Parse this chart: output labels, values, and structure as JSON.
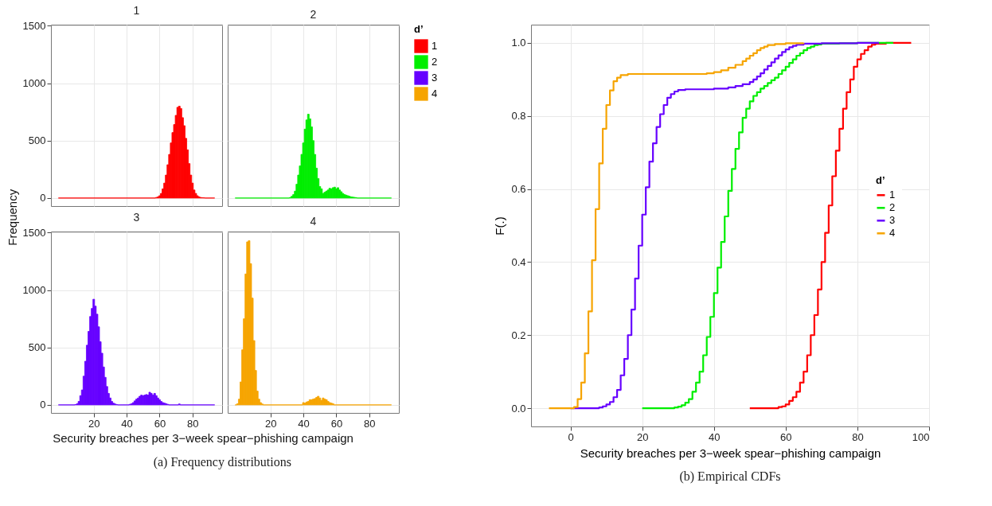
{
  "chart_data": [
    {
      "type": "histogram",
      "title": "1",
      "ylabel": "Frequency",
      "xlim": [
        -6,
        98
      ],
      "ylim": [
        -70,
        1510
      ],
      "xticks": [
        20,
        40,
        60,
        80
      ],
      "yticks": [
        0,
        500,
        1000,
        1500
      ],
      "grid": true,
      "tick_labels": "y",
      "legend": "right",
      "legend_title": "d’",
      "bins": [
        -1.5,
        57.5,
        58.5,
        59.5,
        60.5,
        61.5,
        62.5,
        63.5,
        64.5,
        65.5,
        66.5,
        67.5,
        68.5,
        69.5,
        70.5,
        71.5,
        72.5,
        73.5,
        74.5,
        75.5,
        76.5,
        77.5,
        78.5,
        79.5,
        80.5,
        81.5,
        82.5,
        83.5,
        84.5,
        85.5,
        86.5,
        87.5,
        93.5
      ],
      "series": [
        {
          "name": "1",
          "color": "#ff0000",
          "values": [
            0,
            5,
            10,
            20,
            40,
            80,
            130,
            200,
            290,
            380,
            480,
            570,
            640,
            720,
            790,
            800,
            780,
            700,
            630,
            520,
            420,
            300,
            200,
            130,
            70,
            40,
            20,
            10,
            5,
            3,
            2,
            0
          ]
        }
      ]
    },
    {
      "type": "histogram",
      "title": "2",
      "xlim": [
        -6,
        98
      ],
      "ylim": [
        -70,
        1510
      ],
      "xticks": [
        20,
        40,
        60,
        80
      ],
      "yticks": [
        0,
        500,
        1000,
        1500
      ],
      "grid": true,
      "tick_labels": false,
      "legend": "right",
      "bins": [
        -1.5,
        31.5,
        32.5,
        33.5,
        34.5,
        35.5,
        36.5,
        37.5,
        38.5,
        39.5,
        40.5,
        41.5,
        42.5,
        43.5,
        44.5,
        45.5,
        46.5,
        47.5,
        48.5,
        49.5,
        50.5,
        51.5,
        52.5,
        53.5,
        54.5,
        55.5,
        56.5,
        57.5,
        58.5,
        59.5,
        60.5,
        61.5,
        62.5,
        63.5,
        64.5,
        65.5,
        66.5,
        67.5,
        68.5,
        69.5,
        70.5,
        71.5,
        72.5,
        93.5
      ],
      "series": [
        {
          "name": "2",
          "color": "#00ee00",
          "values": [
            0,
            5,
            15,
            30,
            60,
            120,
            200,
            280,
            380,
            480,
            600,
            680,
            730,
            690,
            620,
            500,
            380,
            260,
            170,
            100,
            80,
            40,
            50,
            60,
            70,
            85,
            80,
            90,
            95,
            80,
            90,
            70,
            55,
            40,
            30,
            25,
            20,
            15,
            10,
            8,
            6,
            4,
            0
          ]
        }
      ]
    },
    {
      "type": "histogram",
      "title": "3",
      "xlabel": "Security breaches per 3−week spear−phishing campaign",
      "xlim": [
        -6,
        98
      ],
      "ylim": [
        -70,
        1510
      ],
      "xticks": [
        20,
        40,
        60,
        80
      ],
      "yticks": [
        0,
        500,
        1000,
        1500
      ],
      "grid": true,
      "legend": "right",
      "annotations": [
        "(a) Frequency distributions"
      ],
      "bins": [
        -1.5,
        8.5,
        9.5,
        10.5,
        11.5,
        12.5,
        13.5,
        14.5,
        15.5,
        16.5,
        17.5,
        18.5,
        19.5,
        20.5,
        21.5,
        22.5,
        23.5,
        24.5,
        25.5,
        26.5,
        27.5,
        28.5,
        29.5,
        30.5,
        31.5,
        32.5,
        33.5,
        34.5,
        35.5,
        36.5,
        37.5,
        38.5,
        39.5,
        40.5,
        41.5,
        42.5,
        43.5,
        44.5,
        45.5,
        46.5,
        47.5,
        48.5,
        49.5,
        50.5,
        51.5,
        52.5,
        53.5,
        54.5,
        55.5,
        56.5,
        57.5,
        58.5,
        59.5,
        60.5,
        61.5,
        62.5,
        63.5,
        64.5,
        65.5,
        71.5,
        72.5,
        93.5
      ],
      "series": [
        {
          "name": "3",
          "color": "#6600ff",
          "values": [
            0,
            3,
            10,
            30,
            80,
            130,
            250,
            380,
            520,
            640,
            770,
            840,
            920,
            860,
            790,
            680,
            550,
            450,
            330,
            240,
            160,
            100,
            60,
            30,
            15,
            8,
            3,
            0,
            0,
            0,
            0,
            0,
            0,
            0,
            5,
            10,
            20,
            35,
            50,
            60,
            75,
            85,
            80,
            85,
            90,
            85,
            110,
            100,
            85,
            100,
            80,
            60,
            45,
            30,
            20,
            15,
            10,
            5,
            0,
            8,
            0
          ]
        }
      ]
    },
    {
      "type": "histogram",
      "title": "4",
      "xlim": [
        -6,
        98
      ],
      "ylim": [
        -70,
        1510
      ],
      "xticks": [
        20,
        40,
        60,
        80
      ],
      "yticks": [
        0,
        500,
        1000,
        1500
      ],
      "grid": true,
      "tick_labels": "x",
      "legend": "right",
      "bins": [
        -1.5,
        -0.5,
        0.5,
        1.5,
        2.5,
        3.5,
        4.5,
        5.5,
        6.5,
        7.5,
        8.5,
        9.5,
        10.5,
        11.5,
        12.5,
        13.5,
        14.5,
        15.5,
        39.5,
        40.5,
        41.5,
        42.5,
        43.5,
        44.5,
        45.5,
        46.5,
        47.5,
        48.5,
        49.5,
        50.5,
        51.5,
        52.5,
        53.5,
        54.5,
        55.5,
        56.5,
        57.5,
        58.5,
        93.5
      ],
      "series": [
        {
          "name": "4",
          "color": "#f6a400",
          "values": [
            0,
            10,
            50,
            200,
            480,
            750,
            1140,
            1420,
            1430,
            1230,
            930,
            560,
            300,
            120,
            50,
            20,
            8,
            0,
            20,
            15,
            25,
            30,
            45,
            45,
            50,
            55,
            65,
            75,
            60,
            40,
            60,
            50,
            45,
            30,
            20,
            15,
            10,
            0
          ]
        }
      ]
    },
    {
      "type": "step",
      "xlabel": "Security breaches per 3−week spear−phishing campaign",
      "ylabel": "F(.)",
      "xlim": [
        -11,
        100
      ],
      "ylim": [
        -0.05,
        1.05
      ],
      "xticks": [
        0,
        20,
        40,
        60,
        80,
        100
      ],
      "yticks": [
        {
          "value": 0,
          "label": "0.0"
        },
        0.2,
        0.4,
        0.6,
        0.8,
        {
          "value": 1,
          "label": "1.0"
        }
      ],
      "grid": true,
      "legend": "right",
      "legend_title": "d’",
      "annotations": [
        "(b) Empirical CDFs"
      ],
      "series": [
        {
          "name": "1",
          "color": "#ff0000",
          "x": [
            50,
            58,
            59,
            60,
            61,
            62,
            63,
            64,
            65,
            66,
            67,
            68,
            69,
            70,
            71,
            72,
            73,
            74,
            75,
            76,
            77,
            78,
            79,
            80,
            81,
            82,
            83,
            84,
            85,
            88,
            95
          ],
          "values": [
            0,
            0.003,
            0.005,
            0.01,
            0.02,
            0.03,
            0.045,
            0.07,
            0.1,
            0.145,
            0.2,
            0.255,
            0.325,
            0.4,
            0.48,
            0.555,
            0.635,
            0.705,
            0.765,
            0.82,
            0.865,
            0.9,
            0.935,
            0.955,
            0.97,
            0.98,
            0.99,
            0.995,
            0.998,
            1,
            1
          ]
        },
        {
          "name": "2",
          "color": "#00ee00",
          "x": [
            20,
            29,
            30,
            31,
            32,
            33,
            34,
            35,
            36,
            37,
            38,
            39,
            40,
            41,
            42,
            43,
            44,
            45,
            46,
            47,
            48,
            49,
            50,
            51,
            52,
            53,
            54,
            55,
            56,
            57,
            58,
            59,
            60,
            61,
            62,
            63,
            64,
            65,
            66,
            67,
            68,
            69,
            70,
            75,
            80,
            90
          ],
          "values": [
            0,
            0.002,
            0.004,
            0.008,
            0.015,
            0.025,
            0.045,
            0.07,
            0.1,
            0.145,
            0.195,
            0.25,
            0.315,
            0.385,
            0.455,
            0.525,
            0.595,
            0.655,
            0.71,
            0.755,
            0.795,
            0.82,
            0.84,
            0.855,
            0.865,
            0.875,
            0.882,
            0.89,
            0.898,
            0.905,
            0.915,
            0.925,
            0.935,
            0.945,
            0.955,
            0.965,
            0.972,
            0.98,
            0.986,
            0.99,
            0.994,
            0.996,
            0.998,
            0.999,
            1,
            1
          ]
        },
        {
          "name": "3",
          "color": "#6600ff",
          "x": [
            0,
            8,
            9,
            10,
            11,
            12,
            13,
            14,
            15,
            16,
            17,
            18,
            19,
            20,
            21,
            22,
            23,
            24,
            25,
            26,
            27,
            28,
            29,
            30,
            32,
            40,
            44,
            46,
            48,
            50,
            51,
            52,
            53,
            54,
            55,
            56,
            57,
            58,
            59,
            60,
            61,
            62,
            63,
            65,
            70,
            80,
            86
          ],
          "values": [
            0,
            0.002,
            0.005,
            0.01,
            0.017,
            0.03,
            0.05,
            0.09,
            0.135,
            0.2,
            0.27,
            0.355,
            0.445,
            0.53,
            0.605,
            0.675,
            0.725,
            0.77,
            0.805,
            0.83,
            0.85,
            0.86,
            0.867,
            0.871,
            0.873,
            0.875,
            0.878,
            0.882,
            0.887,
            0.893,
            0.9,
            0.908,
            0.917,
            0.927,
            0.937,
            0.947,
            0.957,
            0.966,
            0.975,
            0.982,
            0.988,
            0.992,
            0.995,
            0.998,
            0.999,
            1,
            1
          ]
        },
        {
          "name": "4",
          "color": "#f6a400",
          "x": [
            -6,
            1,
            2,
            3,
            4,
            5,
            6,
            7,
            8,
            9,
            10,
            11,
            12,
            13,
            14,
            16,
            38,
            40,
            42,
            44,
            46,
            48,
            49,
            50,
            51,
            52,
            53,
            54,
            55,
            57,
            60,
            65
          ],
          "values": [
            0,
            0.003,
            0.025,
            0.07,
            0.15,
            0.265,
            0.405,
            0.545,
            0.67,
            0.765,
            0.83,
            0.87,
            0.895,
            0.905,
            0.912,
            0.915,
            0.917,
            0.92,
            0.925,
            0.932,
            0.94,
            0.95,
            0.957,
            0.965,
            0.972,
            0.98,
            0.986,
            0.99,
            0.994,
            0.997,
            0.999,
            1
          ]
        }
      ]
    }
  ]
}
